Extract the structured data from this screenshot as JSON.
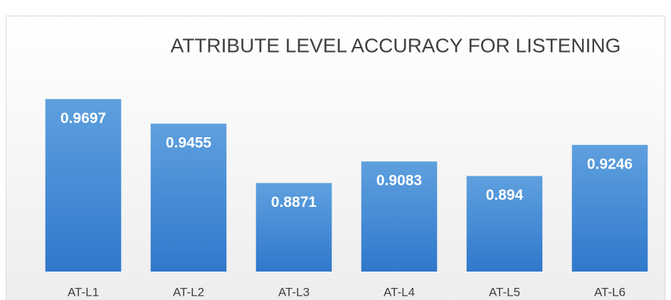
{
  "chart_data": {
    "type": "bar",
    "title": "ATTRIBUTE LEVEL ACCURACY FOR LISTENING",
    "categories": [
      "AT-L1",
      "AT-L2",
      "AT-L3",
      "AT-L4",
      "AT-L5",
      "AT-L6"
    ],
    "values": [
      0.9697,
      0.9455,
      0.8871,
      0.9083,
      0.894,
      0.9246
    ],
    "color": "#3d85d6",
    "ylim": [
      0.8,
      1.0
    ]
  }
}
